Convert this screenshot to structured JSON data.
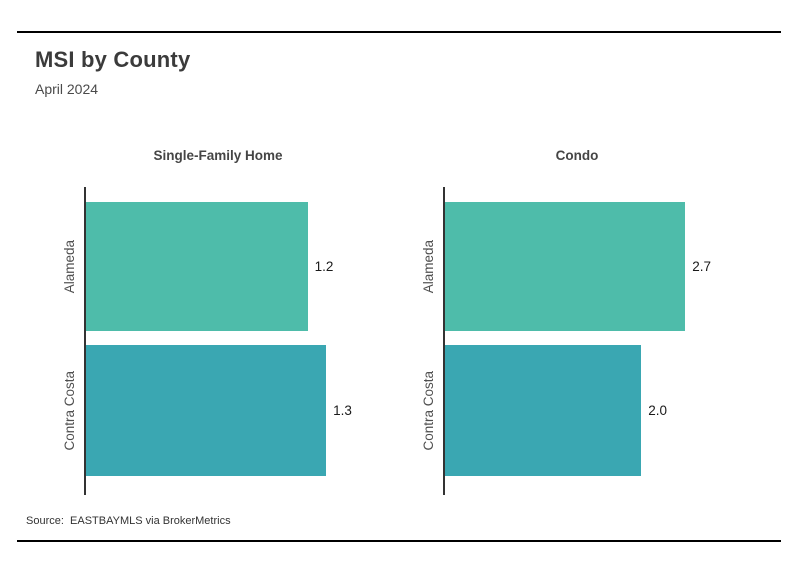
{
  "header": {
    "title": "MSI by County",
    "subtitle": "April 2024"
  },
  "footer": {
    "source": "Source:  EASTBAYMLS via BrokerMetrics"
  },
  "colors": {
    "alameda_bar": "#4ebcaa",
    "contra_costa_bar": "#3aa7b2",
    "axis": "#333333",
    "divider": "#000000"
  },
  "chart_data": [
    {
      "type": "bar",
      "orientation": "horizontal",
      "title": "Single-Family Home",
      "categories": [
        "Alameda",
        "Contra Costa"
      ],
      "values": [
        1.2,
        1.3
      ],
      "value_labels": [
        "1.2",
        "1.3"
      ],
      "xlim": [
        0,
        1.44
      ],
      "bar_colors": [
        "#4ebcaa",
        "#3aa7b2"
      ],
      "grid": false,
      "legend": "none"
    },
    {
      "type": "bar",
      "orientation": "horizontal",
      "title": "Condo",
      "categories": [
        "Alameda",
        "Contra Costa"
      ],
      "values": [
        2.7,
        2.0
      ],
      "value_labels": [
        "2.7",
        "2.0"
      ],
      "xlim": [
        0,
        2.71
      ],
      "bar_colors": [
        "#4ebcaa",
        "#3aa7b2"
      ],
      "grid": false,
      "legend": "none"
    }
  ]
}
